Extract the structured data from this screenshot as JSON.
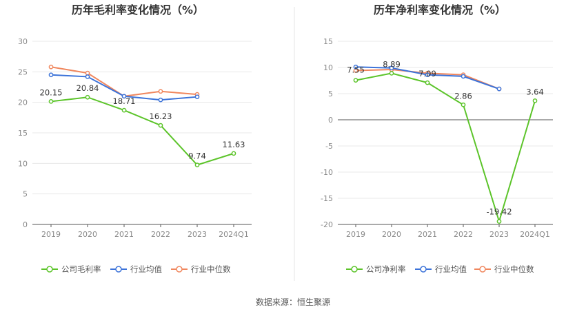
{
  "source_note": "数据来源：恒生聚源",
  "chart_data": [
    {
      "type": "line",
      "title": "历年毛利率变化情况（%）",
      "categories": [
        "2019",
        "2020",
        "2021",
        "2022",
        "2023",
        "2024Q1"
      ],
      "yticks": [
        0,
        5,
        10,
        15,
        20,
        25,
        30
      ],
      "ylim": [
        0,
        30
      ],
      "grid": true,
      "legend_position": "bottom",
      "series": [
        {
          "name": "公司毛利率",
          "color": "#5cc42a",
          "values": [
            20.15,
            20.84,
            18.71,
            16.23,
            9.74,
            11.63
          ],
          "labels": [
            "20.15",
            "20.84",
            "18.71",
            "16.23",
            "9.74",
            "11.63"
          ]
        },
        {
          "name": "行业均值",
          "color": "#3c73d9",
          "values": [
            24.5,
            24.2,
            21.0,
            20.4,
            20.9,
            null
          ]
        },
        {
          "name": "行业中位数",
          "color": "#f0875e",
          "values": [
            25.8,
            24.8,
            21.0,
            21.8,
            21.3,
            null
          ]
        }
      ]
    },
    {
      "type": "line",
      "title": "历年净利率变化情况（%）",
      "categories": [
        "2019",
        "2020",
        "2021",
        "2022",
        "2023",
        "2024Q1"
      ],
      "yticks": [
        -20,
        -15,
        -10,
        -5,
        0,
        5,
        10,
        15
      ],
      "ylim": [
        -20,
        15
      ],
      "grid": true,
      "legend_position": "bottom",
      "series": [
        {
          "name": "公司净利率",
          "color": "#5cc42a",
          "values": [
            7.55,
            8.89,
            7.09,
            2.86,
            -19.42,
            3.64
          ],
          "labels": [
            "7.55",
            "8.89",
            "7.09",
            "2.86",
            "-19.42",
            "3.64"
          ]
        },
        {
          "name": "行业均值",
          "color": "#3c73d9",
          "values": [
            10.1,
            9.9,
            8.6,
            8.3,
            5.9,
            null
          ]
        },
        {
          "name": "行业中位数",
          "color": "#f0875e",
          "values": [
            9.4,
            9.6,
            8.9,
            8.6,
            5.9,
            null
          ]
        }
      ]
    }
  ]
}
